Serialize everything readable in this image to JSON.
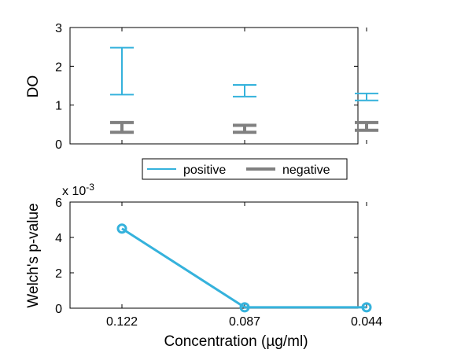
{
  "colors": {
    "positive": "#35b2dc",
    "negative": "#808080",
    "pvalue": "#35b2dc",
    "axis": "#000000"
  },
  "chart_data": [
    {
      "type": "errorbar",
      "ylabel": "DO",
      "ylim": [
        0,
        3
      ],
      "yticks": [
        0,
        1,
        2,
        3
      ],
      "categories": [
        "0.122",
        "0.087",
        "0.044"
      ],
      "legend": {
        "position": "below",
        "entries": [
          "positive",
          "negative"
        ]
      },
      "series": [
        {
          "name": "positive",
          "low": [
            1.27,
            1.22,
            1.12
          ],
          "high": [
            2.48,
            1.52,
            1.3
          ]
        },
        {
          "name": "negative",
          "low": [
            0.3,
            0.3,
            0.35
          ],
          "high": [
            0.55,
            0.48,
            0.55
          ]
        }
      ]
    },
    {
      "type": "line",
      "ylabel": "Welch's p-value",
      "xlabel": "Concentration (µg/ml)",
      "ylim": [
        0,
        6
      ],
      "yticks": [
        0,
        2,
        4,
        6
      ],
      "exponent_label": "x 10",
      "exponent_power": "-3",
      "categories": [
        "0.122",
        "0.087",
        "0.044"
      ],
      "series": [
        {
          "name": "p-value",
          "values": [
            4.5,
            0.05,
            0.05
          ]
        }
      ]
    }
  ]
}
